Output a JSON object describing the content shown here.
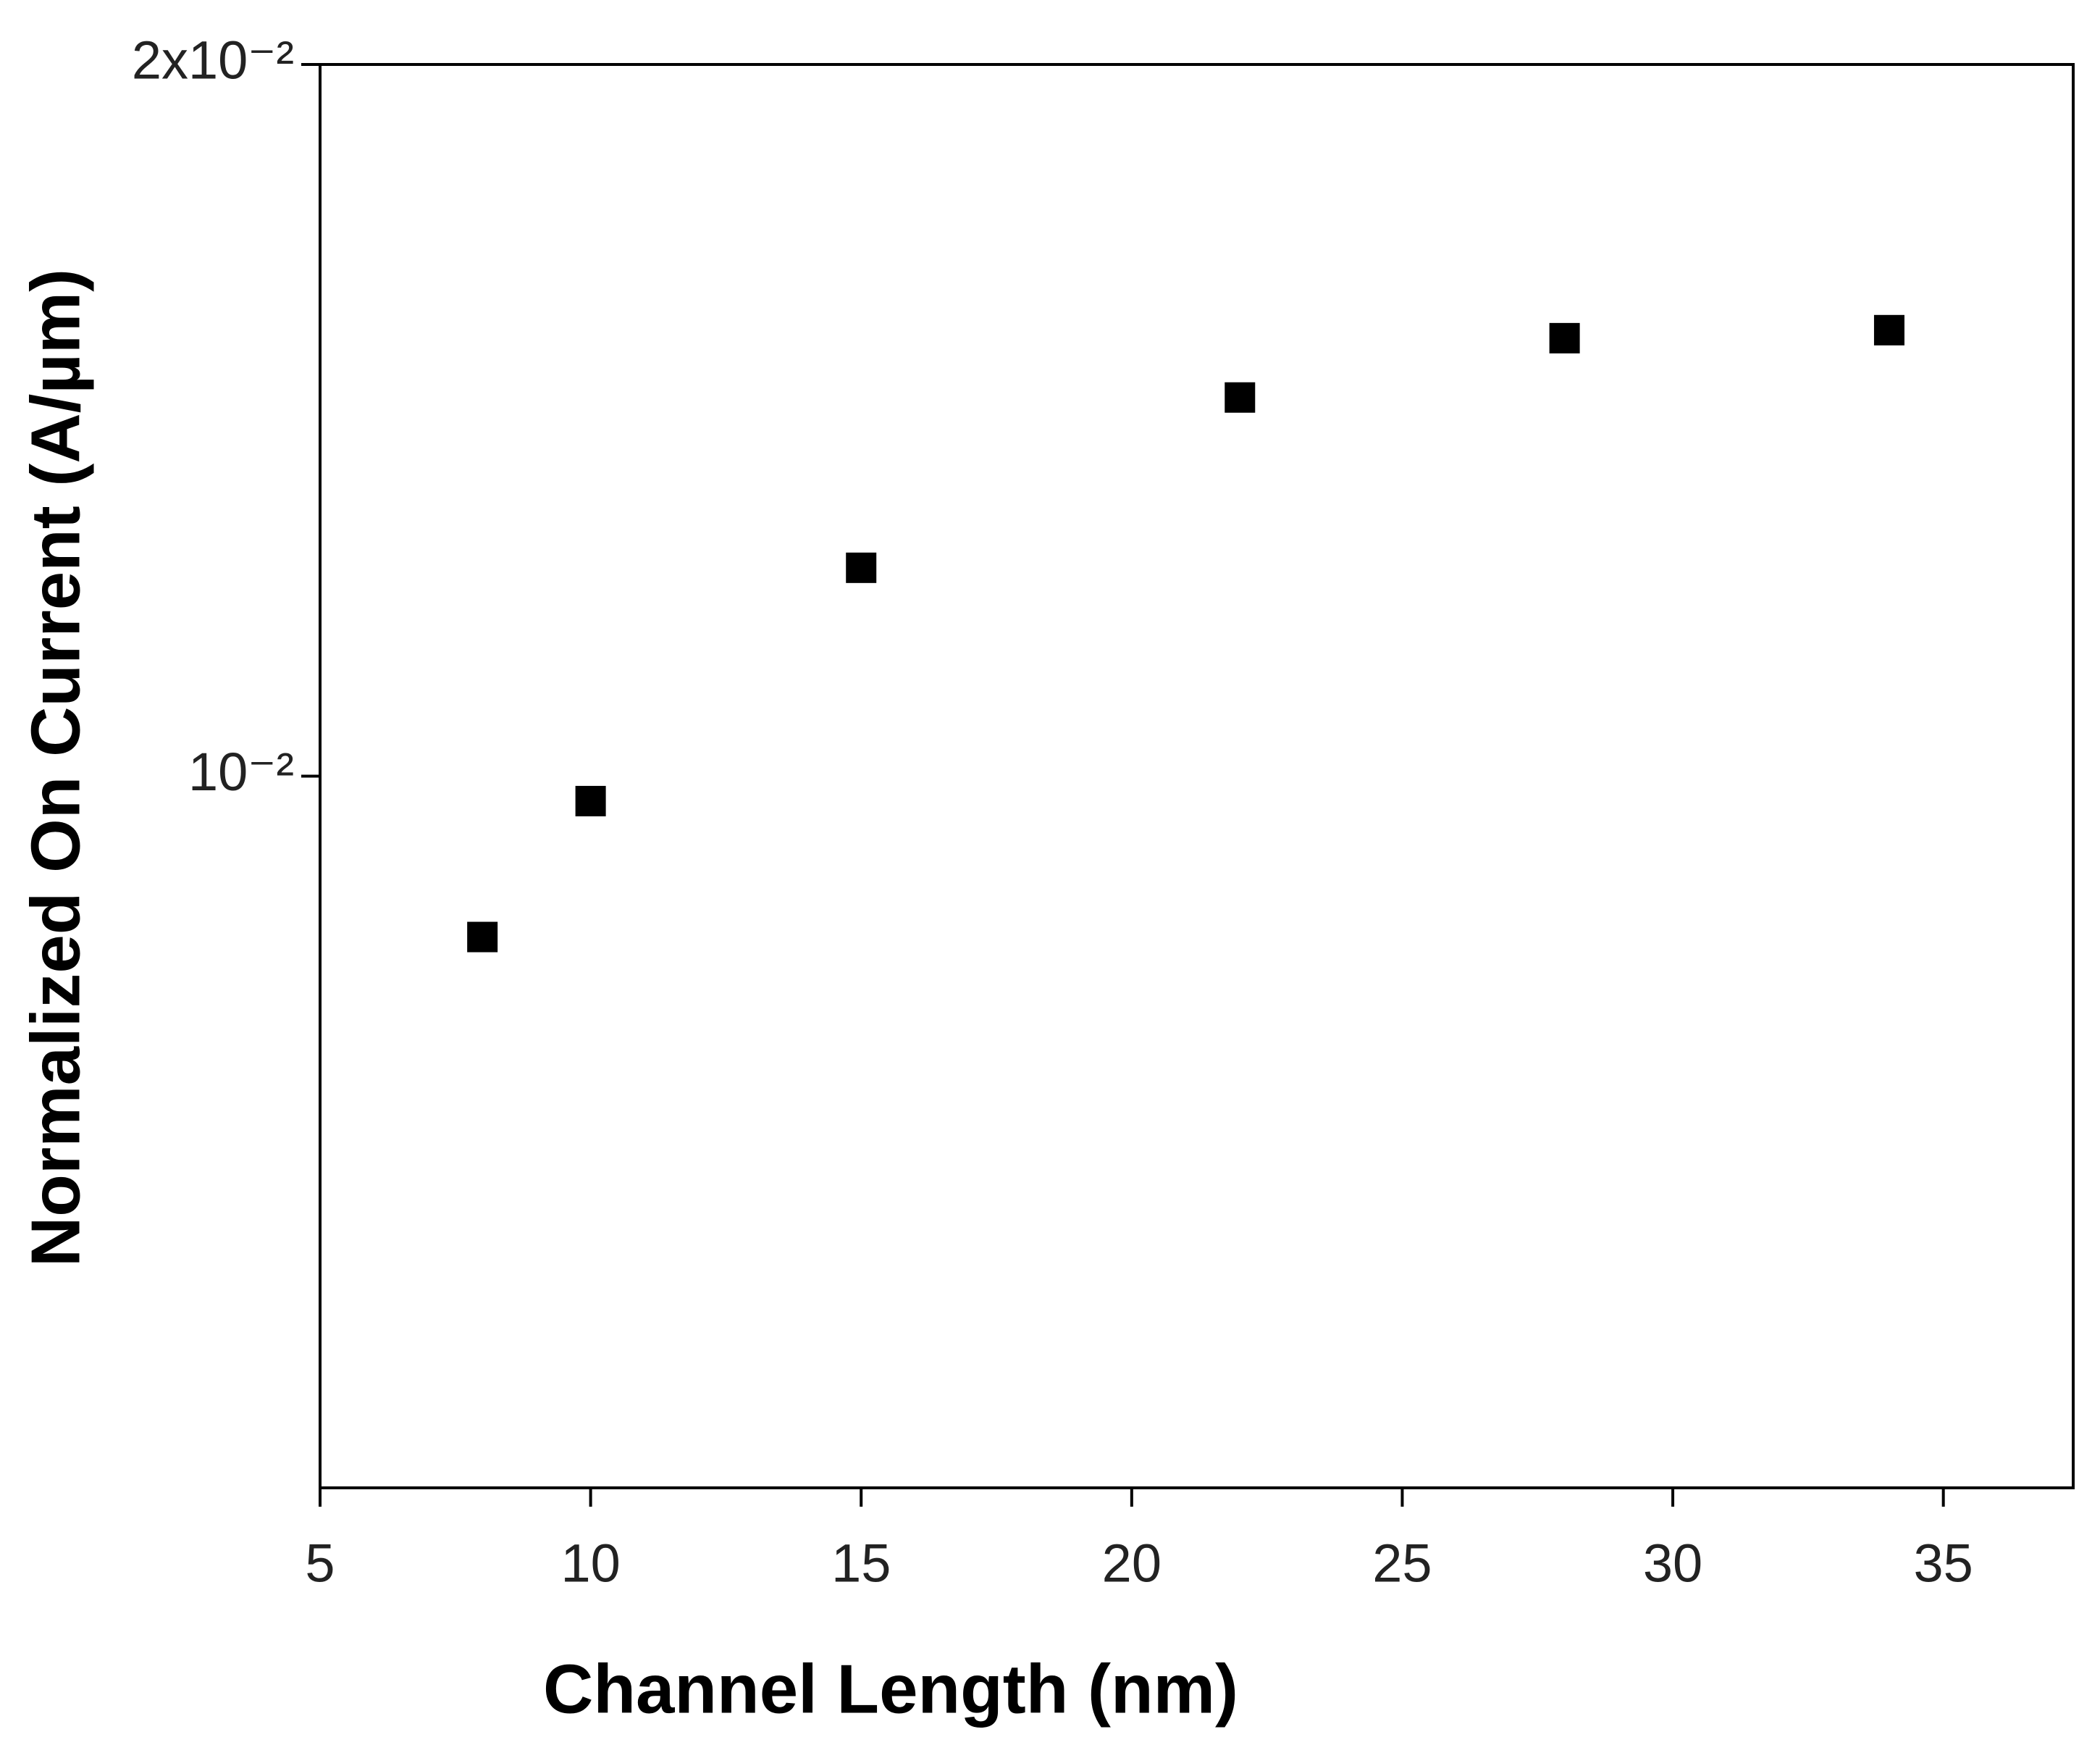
{
  "chart_data": {
    "type": "scatter",
    "x_label": "Channel Length (nm)",
    "y_label": "Normalized On Current (A/µm)",
    "x": [
      8,
      10,
      15,
      22,
      28,
      34
    ],
    "series": [
      {
        "color": "#000000",
        "values": [
          0.00855,
          0.00976,
          0.01225,
          0.01446,
          0.01532,
          0.01544
        ]
      }
    ],
    "xlim": [
      5,
      37.4
    ],
    "xticks": [
      5,
      10,
      15,
      20,
      25,
      30,
      35
    ],
    "ylim": [
      0.005,
      0.02
    ],
    "ylog": true,
    "yticks": [
      {
        "value": 0.01,
        "label": "10⁻²"
      },
      {
        "value": 0.02,
        "label": "2x10⁻²"
      }
    ]
  }
}
